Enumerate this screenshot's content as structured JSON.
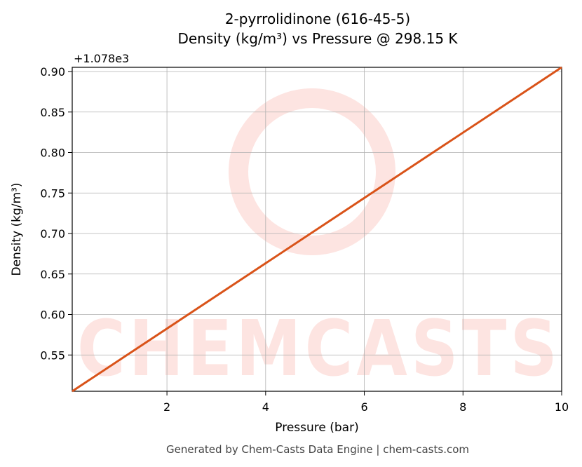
{
  "chart_data": {
    "type": "line",
    "title": "2-pyrrolidinone (616-45-5)",
    "subtitle": "Density (kg/m³) vs Pressure @ 298.15 K",
    "x_label": "Pressure (bar)",
    "y_label": "Density (kg/m³)",
    "y_offset_label": "+1.078e3",
    "watermark": "CHEMCASTS",
    "footer": "Generated by Chem-Casts Data Engine | chem-casts.com",
    "x": [
      0.08,
      10
    ],
    "series": [
      {
        "name": "Density",
        "color": "#d95319",
        "values": [
          0.5052,
          0.9052
        ]
      }
    ],
    "xlim": [
      0.08,
      10
    ],
    "xticks": [
      2,
      4,
      6,
      8,
      10
    ],
    "ylim": [
      0.5052,
      0.9052
    ],
    "yticks": [
      0.55,
      {
        "value": 0.6,
        "label": "0.60"
      },
      0.65,
      {
        "value": 0.7,
        "label": "0.70"
      },
      0.75,
      {
        "value": 0.8,
        "label": "0.80"
      },
      0.85,
      {
        "value": 0.9,
        "label": "0.90"
      }
    ],
    "grid": true
  }
}
